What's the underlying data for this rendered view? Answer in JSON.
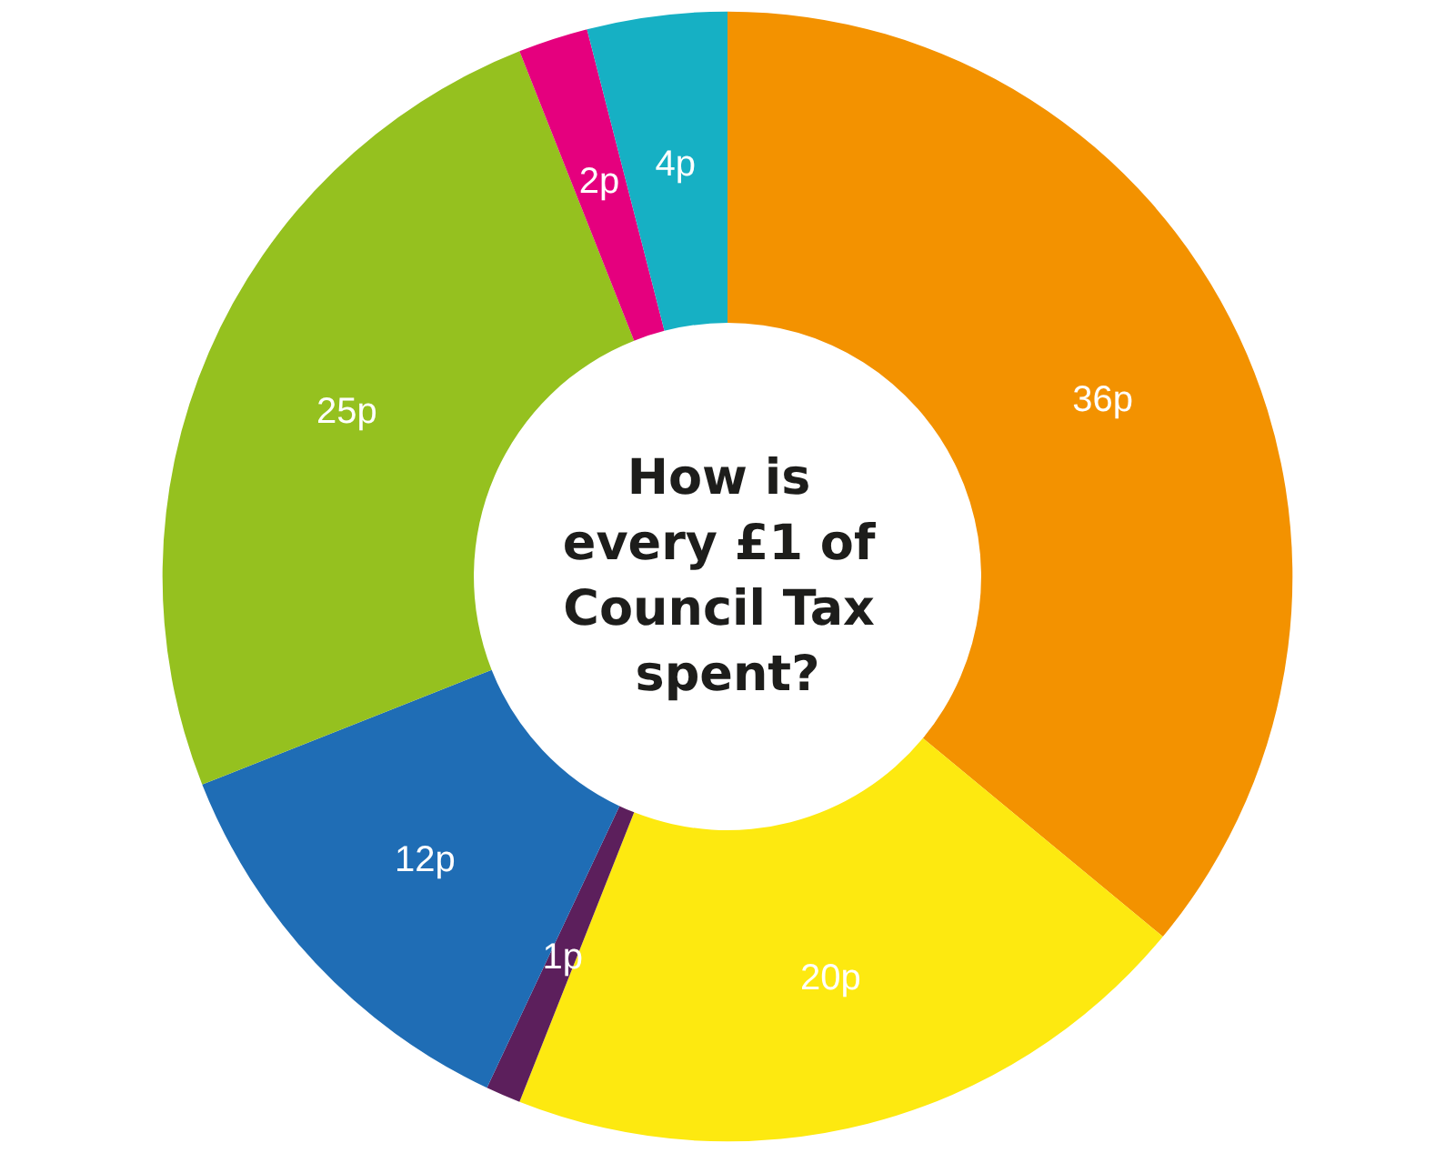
{
  "chart_data": {
    "type": "donut",
    "title": "How is every £1 of Council Tax spent?",
    "categories": [
      null,
      null,
      null,
      null,
      null,
      null,
      null
    ],
    "values": [
      36,
      20,
      1,
      12,
      25,
      2,
      4
    ],
    "colors": [
      "#f39200",
      "#fde910",
      "#5c1f5c",
      "#1f6db5",
      "#95c11f",
      "#e5007e",
      "#16b0c4"
    ],
    "value_labels": [
      "36p",
      "20p",
      "1p",
      "12p",
      "25p",
      "2p",
      "4p"
    ]
  }
}
